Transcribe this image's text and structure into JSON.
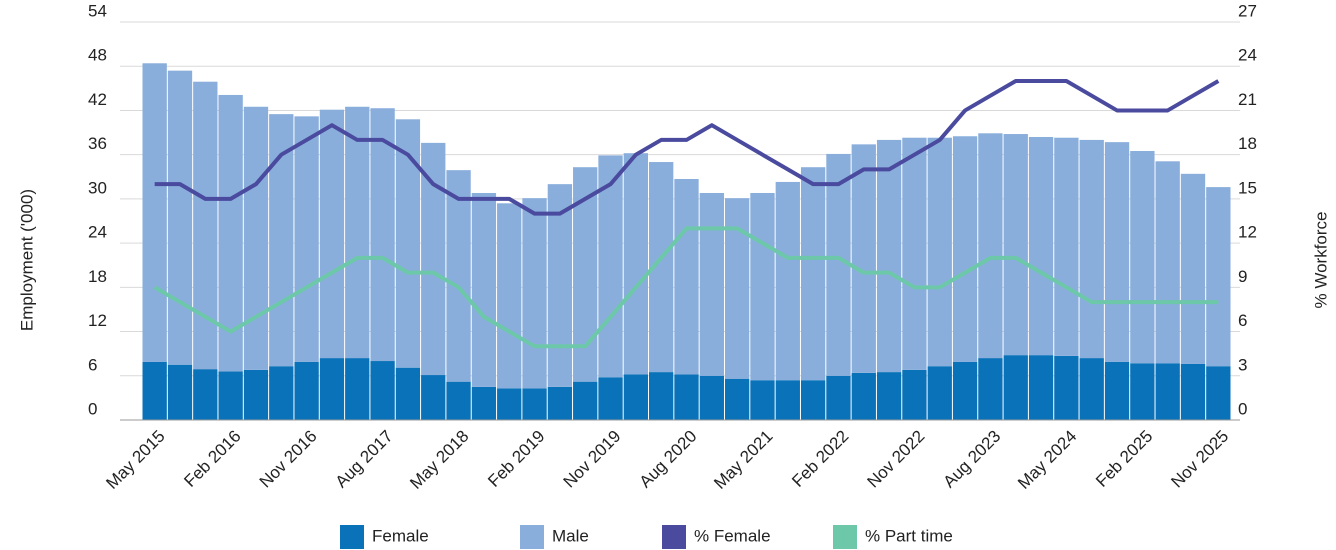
{
  "chart_data": {
    "type": "bar",
    "stacked": true,
    "y_label": "Employment ('000)",
    "y2_label": "% Workforce",
    "categories": [
      "May 2015",
      null,
      null,
      "Feb 2016",
      null,
      null,
      "Nov 2016",
      null,
      null,
      "Aug 2017",
      null,
      null,
      "May 2018",
      null,
      null,
      "Feb 2019",
      null,
      null,
      "Nov 2019",
      null,
      null,
      "Aug 2020",
      null,
      null,
      "May 2021",
      null,
      null,
      "Feb 2022",
      null,
      null,
      "Nov 2022",
      null,
      null,
      "Aug 2023",
      null,
      null,
      "May 2024",
      null,
      null,
      "Feb 2025",
      null,
      null,
      "Nov 2025"
    ],
    "series": [
      {
        "name": "Female",
        "type": "bar",
        "color": "#0a72b8",
        "values": [
          7.9,
          7.5,
          6.9,
          6.6,
          6.8,
          7.3,
          7.9,
          8.4,
          8.4,
          8.0,
          7.1,
          6.1,
          5.2,
          4.5,
          4.3,
          4.3,
          4.5,
          5.2,
          5.8,
          6.2,
          6.5,
          6.2,
          6.0,
          5.6,
          5.4,
          5.4,
          5.4,
          6.0,
          6.4,
          6.5,
          6.8,
          7.3,
          7.9,
          8.4,
          8.8,
          8.8,
          8.7,
          8.4,
          7.9,
          7.7,
          7.7,
          7.6,
          7.3
        ]
      },
      {
        "name": "Male",
        "type": "bar",
        "color": "#8aaedc",
        "values": [
          40.5,
          39.9,
          39.0,
          37.5,
          35.7,
          34.2,
          33.3,
          33.7,
          34.1,
          34.3,
          33.7,
          31.5,
          28.7,
          26.3,
          25.1,
          25.8,
          27.5,
          29.1,
          30.1,
          30.0,
          28.5,
          26.5,
          24.8,
          24.5,
          25.4,
          26.9,
          28.9,
          30.1,
          31.0,
          31.5,
          31.5,
          31.0,
          30.6,
          30.5,
          30.0,
          29.6,
          29.6,
          29.6,
          29.8,
          28.8,
          27.4,
          25.8,
          24.3
        ]
      },
      {
        "name": "% Female",
        "type": "line",
        "axis": "y2",
        "color": "#4a4a9e",
        "values": [
          16,
          16,
          15,
          15,
          16,
          18,
          19,
          20,
          19,
          19,
          18,
          16,
          15,
          15,
          15,
          14,
          14,
          15,
          16,
          18,
          19,
          19,
          20,
          19,
          18,
          17,
          16,
          16,
          17,
          17,
          18,
          19,
          21,
          22,
          23,
          23,
          23,
          22,
          21,
          21,
          21,
          22,
          23
        ]
      },
      {
        "name": "% Part time",
        "type": "line",
        "axis": "y2",
        "color": "#6cc8a8",
        "values": [
          9,
          8,
          7,
          6,
          7,
          8,
          9,
          10,
          11,
          11,
          10,
          10,
          9,
          7,
          6,
          5,
          5,
          5,
          7,
          9,
          11,
          13,
          13,
          13,
          12,
          11,
          11,
          11,
          10,
          10,
          9,
          9,
          10,
          11,
          11,
          10,
          9,
          8,
          8,
          8,
          8,
          8,
          8
        ]
      }
    ],
    "ylim": [
      0,
      54
    ],
    "yticks": [
      0,
      6,
      12,
      18,
      24,
      30,
      36,
      42,
      48,
      54
    ],
    "y2lim": [
      0,
      27
    ],
    "y2ticks": [
      0,
      3,
      6,
      9,
      12,
      15,
      18,
      21,
      24,
      27
    ],
    "grid": true,
    "legend": "bottom"
  }
}
